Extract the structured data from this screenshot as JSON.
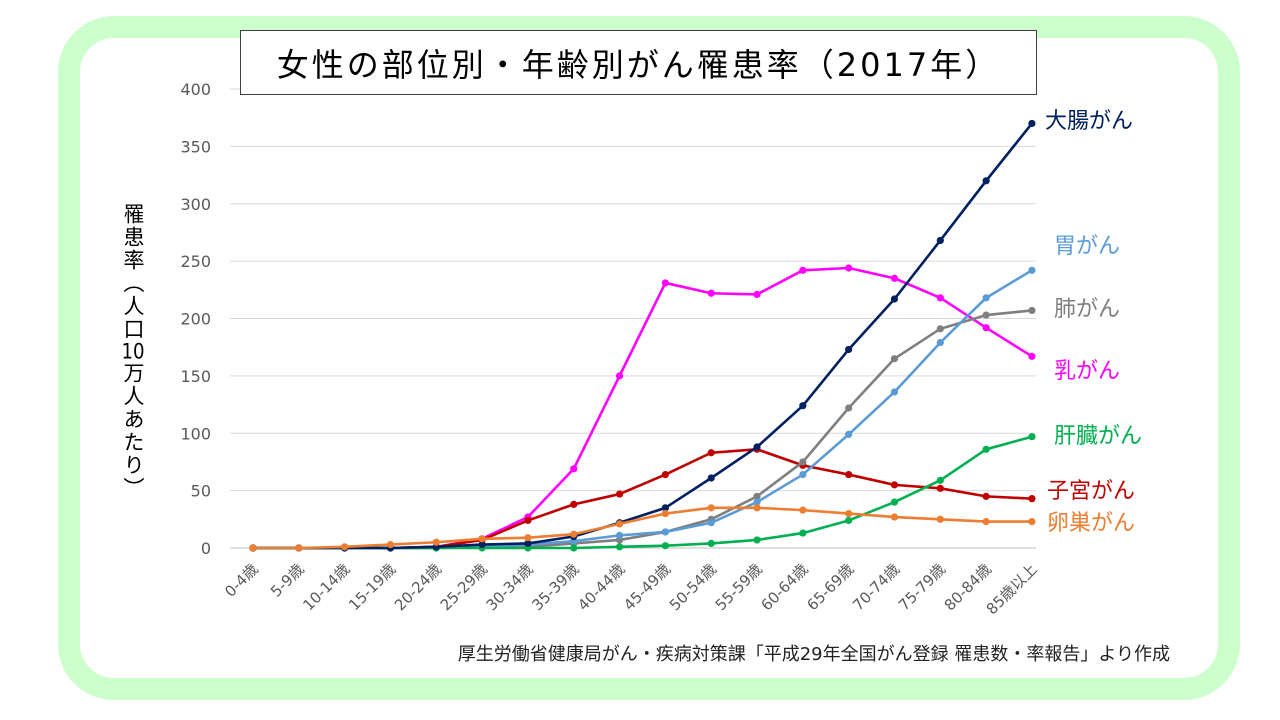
{
  "source_note": "厚生労働省健康局がん・疾病対策課「平成29年全国がん登録 罹患数・率報告」より作成",
  "chart_data": {
    "type": "line",
    "title": "女性の部位別・年齢別がん罹患率（2017年）",
    "ylabel": "罹患率（人口10万人あたり）",
    "ylim": [
      0,
      400
    ],
    "yticks": [
      0,
      50,
      100,
      150,
      200,
      250,
      300,
      350,
      400
    ],
    "grid": true,
    "legend": "right",
    "categories": [
      "0-4歳",
      "5-9歳",
      "10-14歳",
      "15-19歳",
      "20-24歳",
      "25-29歳",
      "30-34歳",
      "35-39歳",
      "40-44歳",
      "45-49歳",
      "50-54歳",
      "55-59歳",
      "60-64歳",
      "65-69歳",
      "70-74歳",
      "75-79歳",
      "80-84歳",
      "85歳以上"
    ],
    "series": [
      {
        "name": "大腸がん",
        "color": "#002060",
        "values": [
          0,
          0,
          0,
          0,
          1,
          3,
          4,
          10,
          22,
          35,
          61,
          88,
          124,
          173,
          217,
          268,
          320,
          370
        ]
      },
      {
        "name": "胃がん",
        "color": "#5b9bd5",
        "values": [
          0,
          0,
          0,
          0,
          0,
          1,
          3,
          6,
          11,
          14,
          22,
          40,
          64,
          99,
          136,
          179,
          218,
          242
        ]
      },
      {
        "name": "肺がん",
        "color": "#7f7f7f",
        "values": [
          0,
          0,
          0,
          0,
          0,
          1,
          1,
          4,
          7,
          14,
          25,
          45,
          75,
          122,
          165,
          191,
          203,
          207
        ]
      },
      {
        "name": "乳がん",
        "color": "#ff00ff",
        "values": [
          0,
          0,
          0,
          0,
          1,
          8,
          27,
          69,
          150,
          231,
          222,
          221,
          242,
          244,
          235,
          218,
          192,
          167
        ]
      },
      {
        "name": "肝臓がん",
        "color": "#00b050",
        "values": [
          0,
          0,
          0,
          0,
          0,
          0,
          0,
          0,
          1,
          2,
          4,
          7,
          13,
          24,
          40,
          59,
          86,
          97
        ]
      },
      {
        "name": "子宮がん",
        "color": "#c00000",
        "values": [
          0,
          0,
          0,
          0,
          1,
          7,
          24,
          38,
          47,
          64,
          83,
          86,
          72,
          64,
          55,
          52,
          45,
          43
        ]
      },
      {
        "name": "卵巣がん",
        "color": "#ed7d31",
        "values": [
          0,
          0,
          1,
          3,
          5,
          8,
          9,
          12,
          21,
          30,
          35,
          35,
          33,
          30,
          27,
          25,
          23,
          23
        ]
      }
    ]
  }
}
